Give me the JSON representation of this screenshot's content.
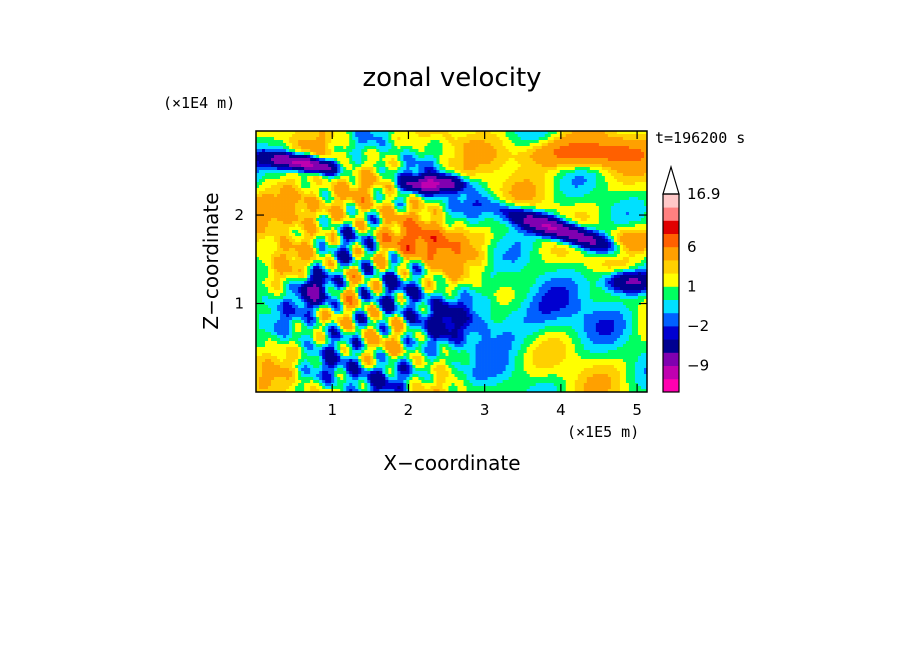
{
  "chart_data": {
    "type": "heatmap",
    "title": "zonal velocity",
    "xlabel": "X−coordinate",
    "ylabel": "Z−coordinate",
    "x_scale_label": "(×1E5 m)",
    "y_scale_label": "(×1E4 m)",
    "time_label": "t=196200 s",
    "xlim": [
      0,
      5.13
    ],
    "ylim": [
      0,
      2.95
    ],
    "x_ticks": [
      "1",
      "2",
      "3",
      "4",
      "5"
    ],
    "x_tick_values": [
      1,
      2,
      3,
      4,
      5
    ],
    "y_ticks": [
      "1",
      "2"
    ],
    "y_tick_values": [
      1,
      2
    ],
    "colorbar": {
      "labels": [
        "16.9",
        "6",
        "1",
        "−2",
        "−9"
      ],
      "label_values": [
        16.9,
        6,
        1,
        -2,
        -9
      ],
      "levels": [
        -15,
        -12,
        -9,
        -6,
        -3,
        -2,
        -1,
        0,
        1,
        2,
        3,
        6,
        9,
        12,
        16.9
      ],
      "colors": [
        "#ff00b0",
        "#c000b0",
        "#8000b0",
        "#000090",
        "#0000d0",
        "#0060ff",
        "#00e0ff",
        "#00ff60",
        "#ffff00",
        "#ffd000",
        "#ffa000",
        "#ff6000",
        "#e00000",
        "#ff8080",
        "#ffc8c8"
      ],
      "extend": "max"
    },
    "grid": false
  }
}
